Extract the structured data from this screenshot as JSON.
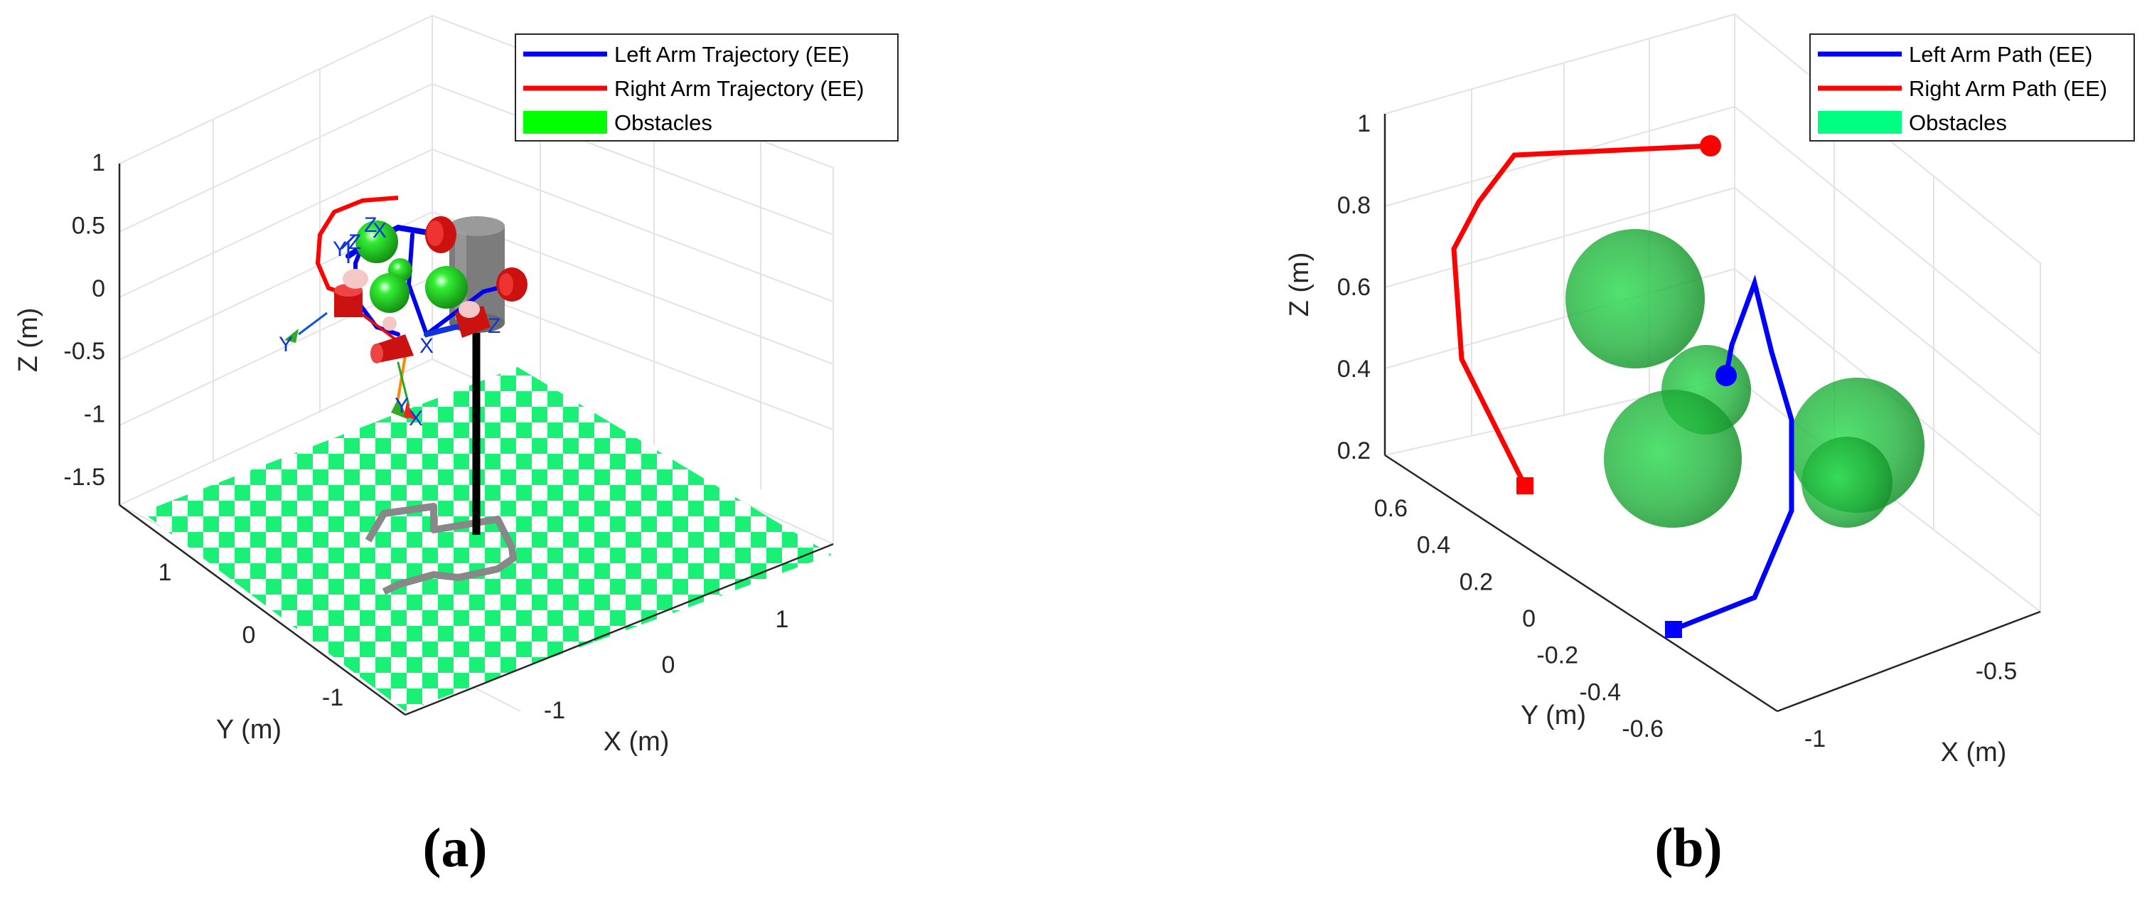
{
  "chart_data": [
    {
      "type": "line3d",
      "panel_label": "(a)",
      "xlabel": "X (m)",
      "ylabel": "Y (m)",
      "zlabel": "Z (m)",
      "x_ticks": [
        "-1",
        "0",
        "1"
      ],
      "y_ticks": [
        "-1",
        "0",
        "1"
      ],
      "z_ticks": [
        "1",
        "0.5",
        "0",
        "-0.5",
        "-1",
        "-1.5"
      ],
      "grid": true,
      "legend_position": "top-right",
      "legend": [
        {
          "label": "Left Arm Trajectory (EE)",
          "color": "#0000ff",
          "kind": "line"
        },
        {
          "label": "Right Arm Trajectory (EE)",
          "color": "#ff0000",
          "kind": "line"
        },
        {
          "label": "Obstacles",
          "color": "#00ff00",
          "kind": "patch"
        }
      ],
      "frame_labels": [
        "Z",
        "Y",
        "X",
        "Z",
        "Y",
        "X",
        "Z"
      ],
      "colors": {
        "floor_tile": "#00ee66",
        "robot_body": "#dd1111",
        "obstacle": "#22cc22",
        "base_trace": "#888888",
        "column": "#808080"
      }
    },
    {
      "type": "line3d",
      "panel_label": "(b)",
      "xlabel": "X (m)",
      "ylabel": "Y (m)",
      "zlabel": "Z (m)",
      "x_ticks": [
        "-1",
        "-0.5"
      ],
      "y_ticks": [
        "0.6",
        "0.4",
        "0.2",
        "0",
        "-0.2",
        "-0.4",
        "-0.6"
      ],
      "z_ticks": [
        "1",
        "0.8",
        "0.6",
        "0.4",
        "0.2"
      ],
      "grid": true,
      "legend_position": "top-right",
      "legend": [
        {
          "label": "Left Arm Path (EE)",
          "color": "#0000ff",
          "kind": "line"
        },
        {
          "label": "Right Arm Path (EE)",
          "color": "#ff0000",
          "kind": "line"
        },
        {
          "label": "Obstacles",
          "color": "#00ff80",
          "kind": "patch"
        }
      ],
      "series": [
        {
          "color": "#0000ff",
          "start_marker": "square",
          "end_marker": "circle"
        },
        {
          "color": "#ff0000",
          "start_marker": "square",
          "end_marker": "circle"
        }
      ],
      "obstacle_count": 5,
      "colors": {
        "obstacle": "#22bb33"
      }
    }
  ]
}
